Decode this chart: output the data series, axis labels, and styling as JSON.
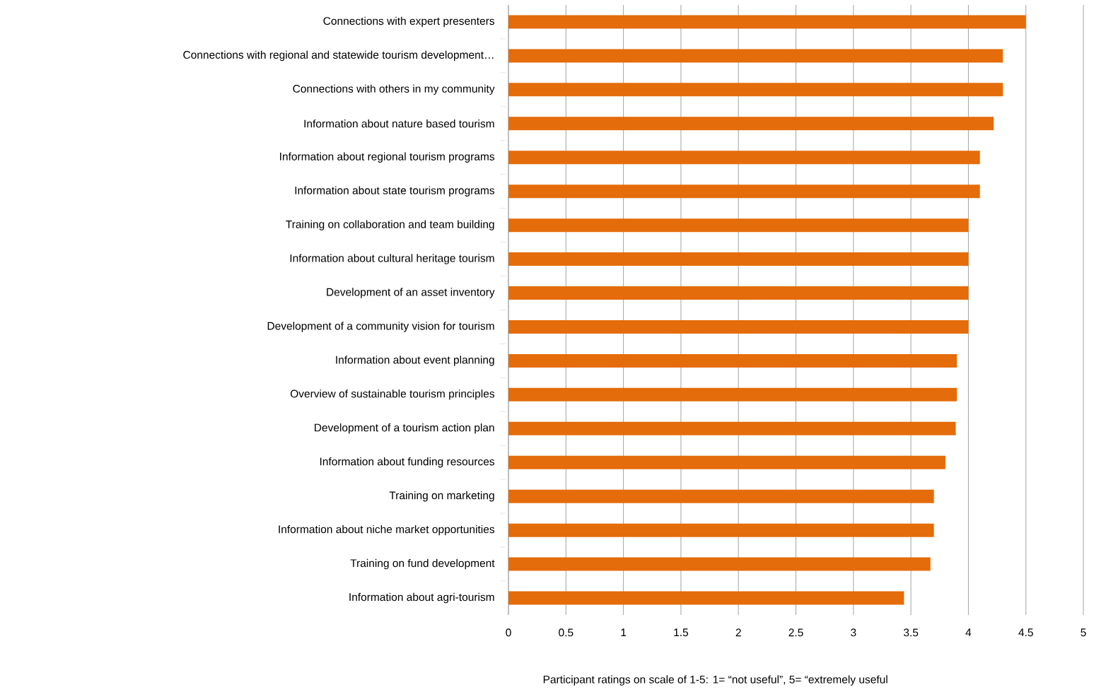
{
  "chart_data": {
    "type": "bar",
    "orientation": "horizontal",
    "categories": [
      "Connections with expert presenters",
      "Connections with regional and statewide tourism development…",
      "Connections with others in my community",
      "Information about nature based tourism",
      "Information about regional tourism programs",
      "Information about state tourism programs",
      "Training on collaboration and team building",
      "Information about cultural heritage tourism",
      "Development of an asset inventory",
      "Development of a community vision for tourism",
      "Information about event planning",
      "Overview of sustainable tourism principles",
      "Development of a tourism action plan",
      "Information about funding resources",
      "Training on marketing",
      "Information about niche market opportunities",
      "Training on fund development",
      "Information about agri-tourism"
    ],
    "values": [
      4.5,
      4.3,
      4.3,
      4.22,
      4.1,
      4.1,
      4.0,
      4.0,
      4.0,
      4.0,
      3.9,
      3.9,
      3.89,
      3.8,
      3.7,
      3.7,
      3.67,
      3.44
    ],
    "color": "#e46c0a",
    "xlim": [
      0,
      5
    ],
    "xticks": [
      0,
      0.5,
      1,
      1.5,
      2,
      2.5,
      3,
      3.5,
      4,
      4.5,
      5
    ],
    "grid": "x",
    "xlabel": "Participant ratings on scale of 1-5: 1= “not useful”, 5= “extremely useful"
  }
}
